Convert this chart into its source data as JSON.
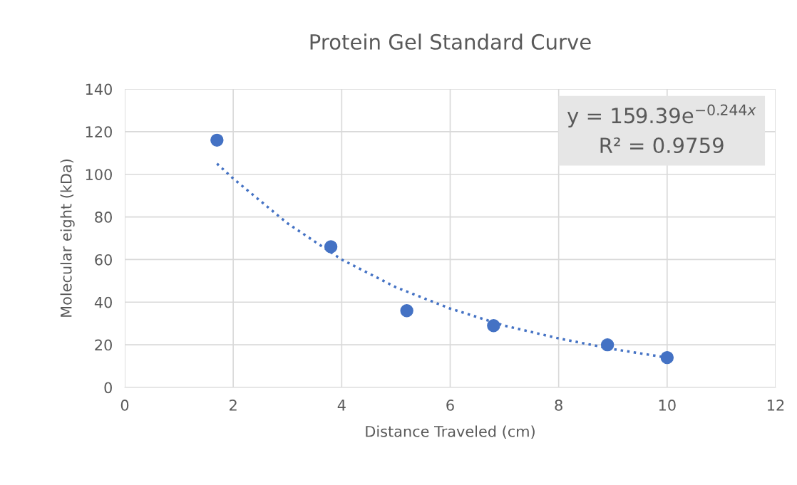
{
  "chart_data": {
    "type": "scatter",
    "title": "Protein Gel Standard Curve",
    "xlabel": "Distance Traveled (cm)",
    "ylabel": "Molecular eight (kDa)",
    "series": [
      {
        "color": "#4472c4",
        "marker": "circle",
        "x": [
          1.7,
          3.8,
          5.2,
          6.8,
          8.9,
          10
        ],
        "values": [
          116,
          66,
          36,
          29,
          20,
          14
        ]
      },
      {
        "type": "line",
        "color": "#4472c4",
        "marker": "none",
        "line_style": "dotted",
        "x": [
          1.7,
          2,
          3,
          4,
          5,
          6,
          7,
          8,
          9,
          10
        ],
        "values": [
          105,
          98,
          77,
          60,
          47,
          37,
          29,
          23,
          18,
          14
        ]
      }
    ],
    "annotations": [
      "y = 159.39e$^{−0.244x}$\nR² = 0.9759"
    ],
    "xlim": [
      0,
      12
    ],
    "xticks": [
      0,
      2,
      4,
      6,
      8,
      10,
      12
    ],
    "ylim": [
      0,
      140
    ],
    "yticks": [
      0,
      20,
      40,
      60,
      80,
      100,
      120,
      140
    ],
    "grid": true,
    "legend": false
  }
}
